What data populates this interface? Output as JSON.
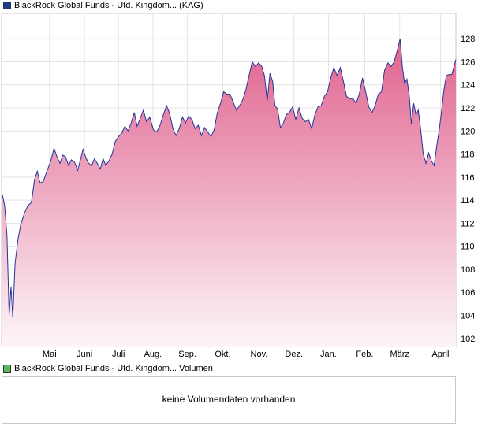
{
  "price_legend": {
    "label": "BlackRock Global Funds - Utd. Kingdom... (KAG)",
    "color": "#1f3a8a"
  },
  "volume_legend": {
    "label": "BlackRock Global Funds - Utd. Kingdom... Volumen",
    "color": "#5cb85c"
  },
  "volume_panel": {
    "message": "keine Volumendaten vorhanden"
  },
  "colors": {
    "line": "#23349a",
    "fill_top": "#e0628e",
    "fill_bottom": "#fdf5f8",
    "grid": "#e4e4e4",
    "frame": "#c8c8c8"
  },
  "chart_data": {
    "type": "area",
    "title": "",
    "xlabel": "",
    "ylabel": "",
    "ylim": [
      101.3,
      130.2
    ],
    "grid": "both",
    "y_ticks": [
      102,
      104,
      106,
      108,
      110,
      112,
      114,
      116,
      118,
      120,
      122,
      124,
      126,
      128
    ],
    "x_ticks": [
      {
        "label": "Mai",
        "t": 0.104
      },
      {
        "label": "Juni",
        "t": 0.181
      },
      {
        "label": "Juli",
        "t": 0.256
      },
      {
        "label": "Aug.",
        "t": 0.332
      },
      {
        "label": "Sep.",
        "t": 0.408
      },
      {
        "label": "Okt.",
        "t": 0.486
      },
      {
        "label": "Nov.",
        "t": 0.566
      },
      {
        "label": "Dez.",
        "t": 0.643
      },
      {
        "label": "Jan.",
        "t": 0.719
      },
      {
        "label": "Feb.",
        "t": 0.799
      },
      {
        "label": "März",
        "t": 0.876
      },
      {
        "label": "April",
        "t": 0.966
      }
    ],
    "series": [
      {
        "points": [
          [
            0.0,
            114.5
          ],
          [
            0.005,
            113.5
          ],
          [
            0.01,
            111.0
          ],
          [
            0.015,
            104.0
          ],
          [
            0.019,
            106.5
          ],
          [
            0.023,
            103.8
          ],
          [
            0.028,
            108.5
          ],
          [
            0.034,
            110.5
          ],
          [
            0.04,
            111.8
          ],
          [
            0.048,
            112.8
          ],
          [
            0.056,
            113.5
          ],
          [
            0.064,
            113.8
          ],
          [
            0.071,
            115.8
          ],
          [
            0.077,
            116.5
          ],
          [
            0.083,
            115.5
          ],
          [
            0.09,
            115.6
          ],
          [
            0.098,
            116.5
          ],
          [
            0.106,
            117.3
          ],
          [
            0.114,
            118.5
          ],
          [
            0.12,
            117.8
          ],
          [
            0.127,
            117.2
          ],
          [
            0.133,
            117.9
          ],
          [
            0.139,
            117.8
          ],
          [
            0.146,
            117.0
          ],
          [
            0.152,
            117.5
          ],
          [
            0.159,
            117.3
          ],
          [
            0.166,
            116.6
          ],
          [
            0.172,
            117.5
          ],
          [
            0.178,
            118.4
          ],
          [
            0.184,
            117.7
          ],
          [
            0.19,
            117.2
          ],
          [
            0.197,
            117.0
          ],
          [
            0.203,
            117.6
          ],
          [
            0.209,
            117.2
          ],
          [
            0.216,
            116.7
          ],
          [
            0.222,
            117.6
          ],
          [
            0.228,
            117.0
          ],
          [
            0.235,
            117.4
          ],
          [
            0.242,
            118.0
          ],
          [
            0.249,
            119.1
          ],
          [
            0.256,
            119.5
          ],
          [
            0.263,
            119.8
          ],
          [
            0.27,
            120.4
          ],
          [
            0.277,
            120.0
          ],
          [
            0.284,
            120.7
          ],
          [
            0.291,
            121.6
          ],
          [
            0.297,
            120.4
          ],
          [
            0.304,
            121.1
          ],
          [
            0.311,
            121.8
          ],
          [
            0.318,
            120.8
          ],
          [
            0.325,
            121.2
          ],
          [
            0.333,
            120.1
          ],
          [
            0.34,
            119.9
          ],
          [
            0.347,
            120.4
          ],
          [
            0.355,
            121.4
          ],
          [
            0.362,
            122.2
          ],
          [
            0.369,
            121.5
          ],
          [
            0.376,
            120.2
          ],
          [
            0.383,
            119.6
          ],
          [
            0.39,
            120.2
          ],
          [
            0.397,
            121.2
          ],
          [
            0.404,
            120.7
          ],
          [
            0.411,
            121.3
          ],
          [
            0.418,
            121.0
          ],
          [
            0.425,
            120.2
          ],
          [
            0.432,
            120.5
          ],
          [
            0.439,
            119.6
          ],
          [
            0.446,
            120.3
          ],
          [
            0.453,
            119.9
          ],
          [
            0.46,
            119.5
          ],
          [
            0.467,
            120.1
          ],
          [
            0.474,
            121.6
          ],
          [
            0.481,
            122.4
          ],
          [
            0.488,
            123.4
          ],
          [
            0.495,
            123.2
          ],
          [
            0.502,
            123.2
          ],
          [
            0.509,
            122.5
          ],
          [
            0.516,
            121.8
          ],
          [
            0.523,
            122.2
          ],
          [
            0.53,
            122.7
          ],
          [
            0.537,
            123.6
          ],
          [
            0.544,
            124.8
          ],
          [
            0.551,
            126.0
          ],
          [
            0.558,
            125.6
          ],
          [
            0.565,
            125.9
          ],
          [
            0.572,
            125.6
          ],
          [
            0.578,
            124.8
          ],
          [
            0.584,
            122.6
          ],
          [
            0.59,
            125.0
          ],
          [
            0.596,
            124.3
          ],
          [
            0.601,
            122.2
          ],
          [
            0.607,
            121.9
          ],
          [
            0.613,
            120.3
          ],
          [
            0.619,
            120.6
          ],
          [
            0.626,
            121.4
          ],
          [
            0.633,
            121.6
          ],
          [
            0.64,
            122.1
          ],
          [
            0.647,
            121.0
          ],
          [
            0.654,
            122.0
          ],
          [
            0.661,
            121.1
          ],
          [
            0.668,
            120.8
          ],
          [
            0.675,
            121.0
          ],
          [
            0.682,
            120.2
          ],
          [
            0.689,
            121.4
          ],
          [
            0.696,
            122.1
          ],
          [
            0.703,
            122.2
          ],
          [
            0.71,
            123.0
          ],
          [
            0.717,
            123.4
          ],
          [
            0.724,
            124.6
          ],
          [
            0.731,
            125.5
          ],
          [
            0.738,
            124.8
          ],
          [
            0.745,
            125.5
          ],
          [
            0.752,
            124.3
          ],
          [
            0.759,
            123.0
          ],
          [
            0.766,
            122.8
          ],
          [
            0.773,
            122.8
          ],
          [
            0.78,
            122.4
          ],
          [
            0.787,
            123.2
          ],
          [
            0.794,
            124.6
          ],
          [
            0.801,
            123.4
          ],
          [
            0.808,
            122.1
          ],
          [
            0.815,
            121.6
          ],
          [
            0.822,
            122.2
          ],
          [
            0.829,
            123.2
          ],
          [
            0.836,
            123.4
          ],
          [
            0.843,
            125.3
          ],
          [
            0.85,
            125.9
          ],
          [
            0.857,
            125.6
          ],
          [
            0.864,
            126.0
          ],
          [
            0.871,
            127.0
          ],
          [
            0.877,
            128.0
          ],
          [
            0.882,
            125.6
          ],
          [
            0.887,
            124.1
          ],
          [
            0.892,
            124.5
          ],
          [
            0.897,
            123.1
          ],
          [
            0.902,
            120.6
          ],
          [
            0.907,
            122.4
          ],
          [
            0.912,
            121.4
          ],
          [
            0.917,
            121.8
          ],
          [
            0.922,
            120.3
          ],
          [
            0.928,
            118.0
          ],
          [
            0.934,
            117.2
          ],
          [
            0.94,
            118.1
          ],
          [
            0.946,
            117.4
          ],
          [
            0.952,
            117.0
          ],
          [
            0.958,
            118.8
          ],
          [
            0.963,
            120.0
          ],
          [
            0.968,
            121.6
          ],
          [
            0.973,
            123.4
          ],
          [
            0.979,
            124.8
          ],
          [
            0.985,
            124.9
          ],
          [
            0.991,
            124.9
          ],
          [
            1.0,
            126.2
          ]
        ]
      }
    ]
  }
}
